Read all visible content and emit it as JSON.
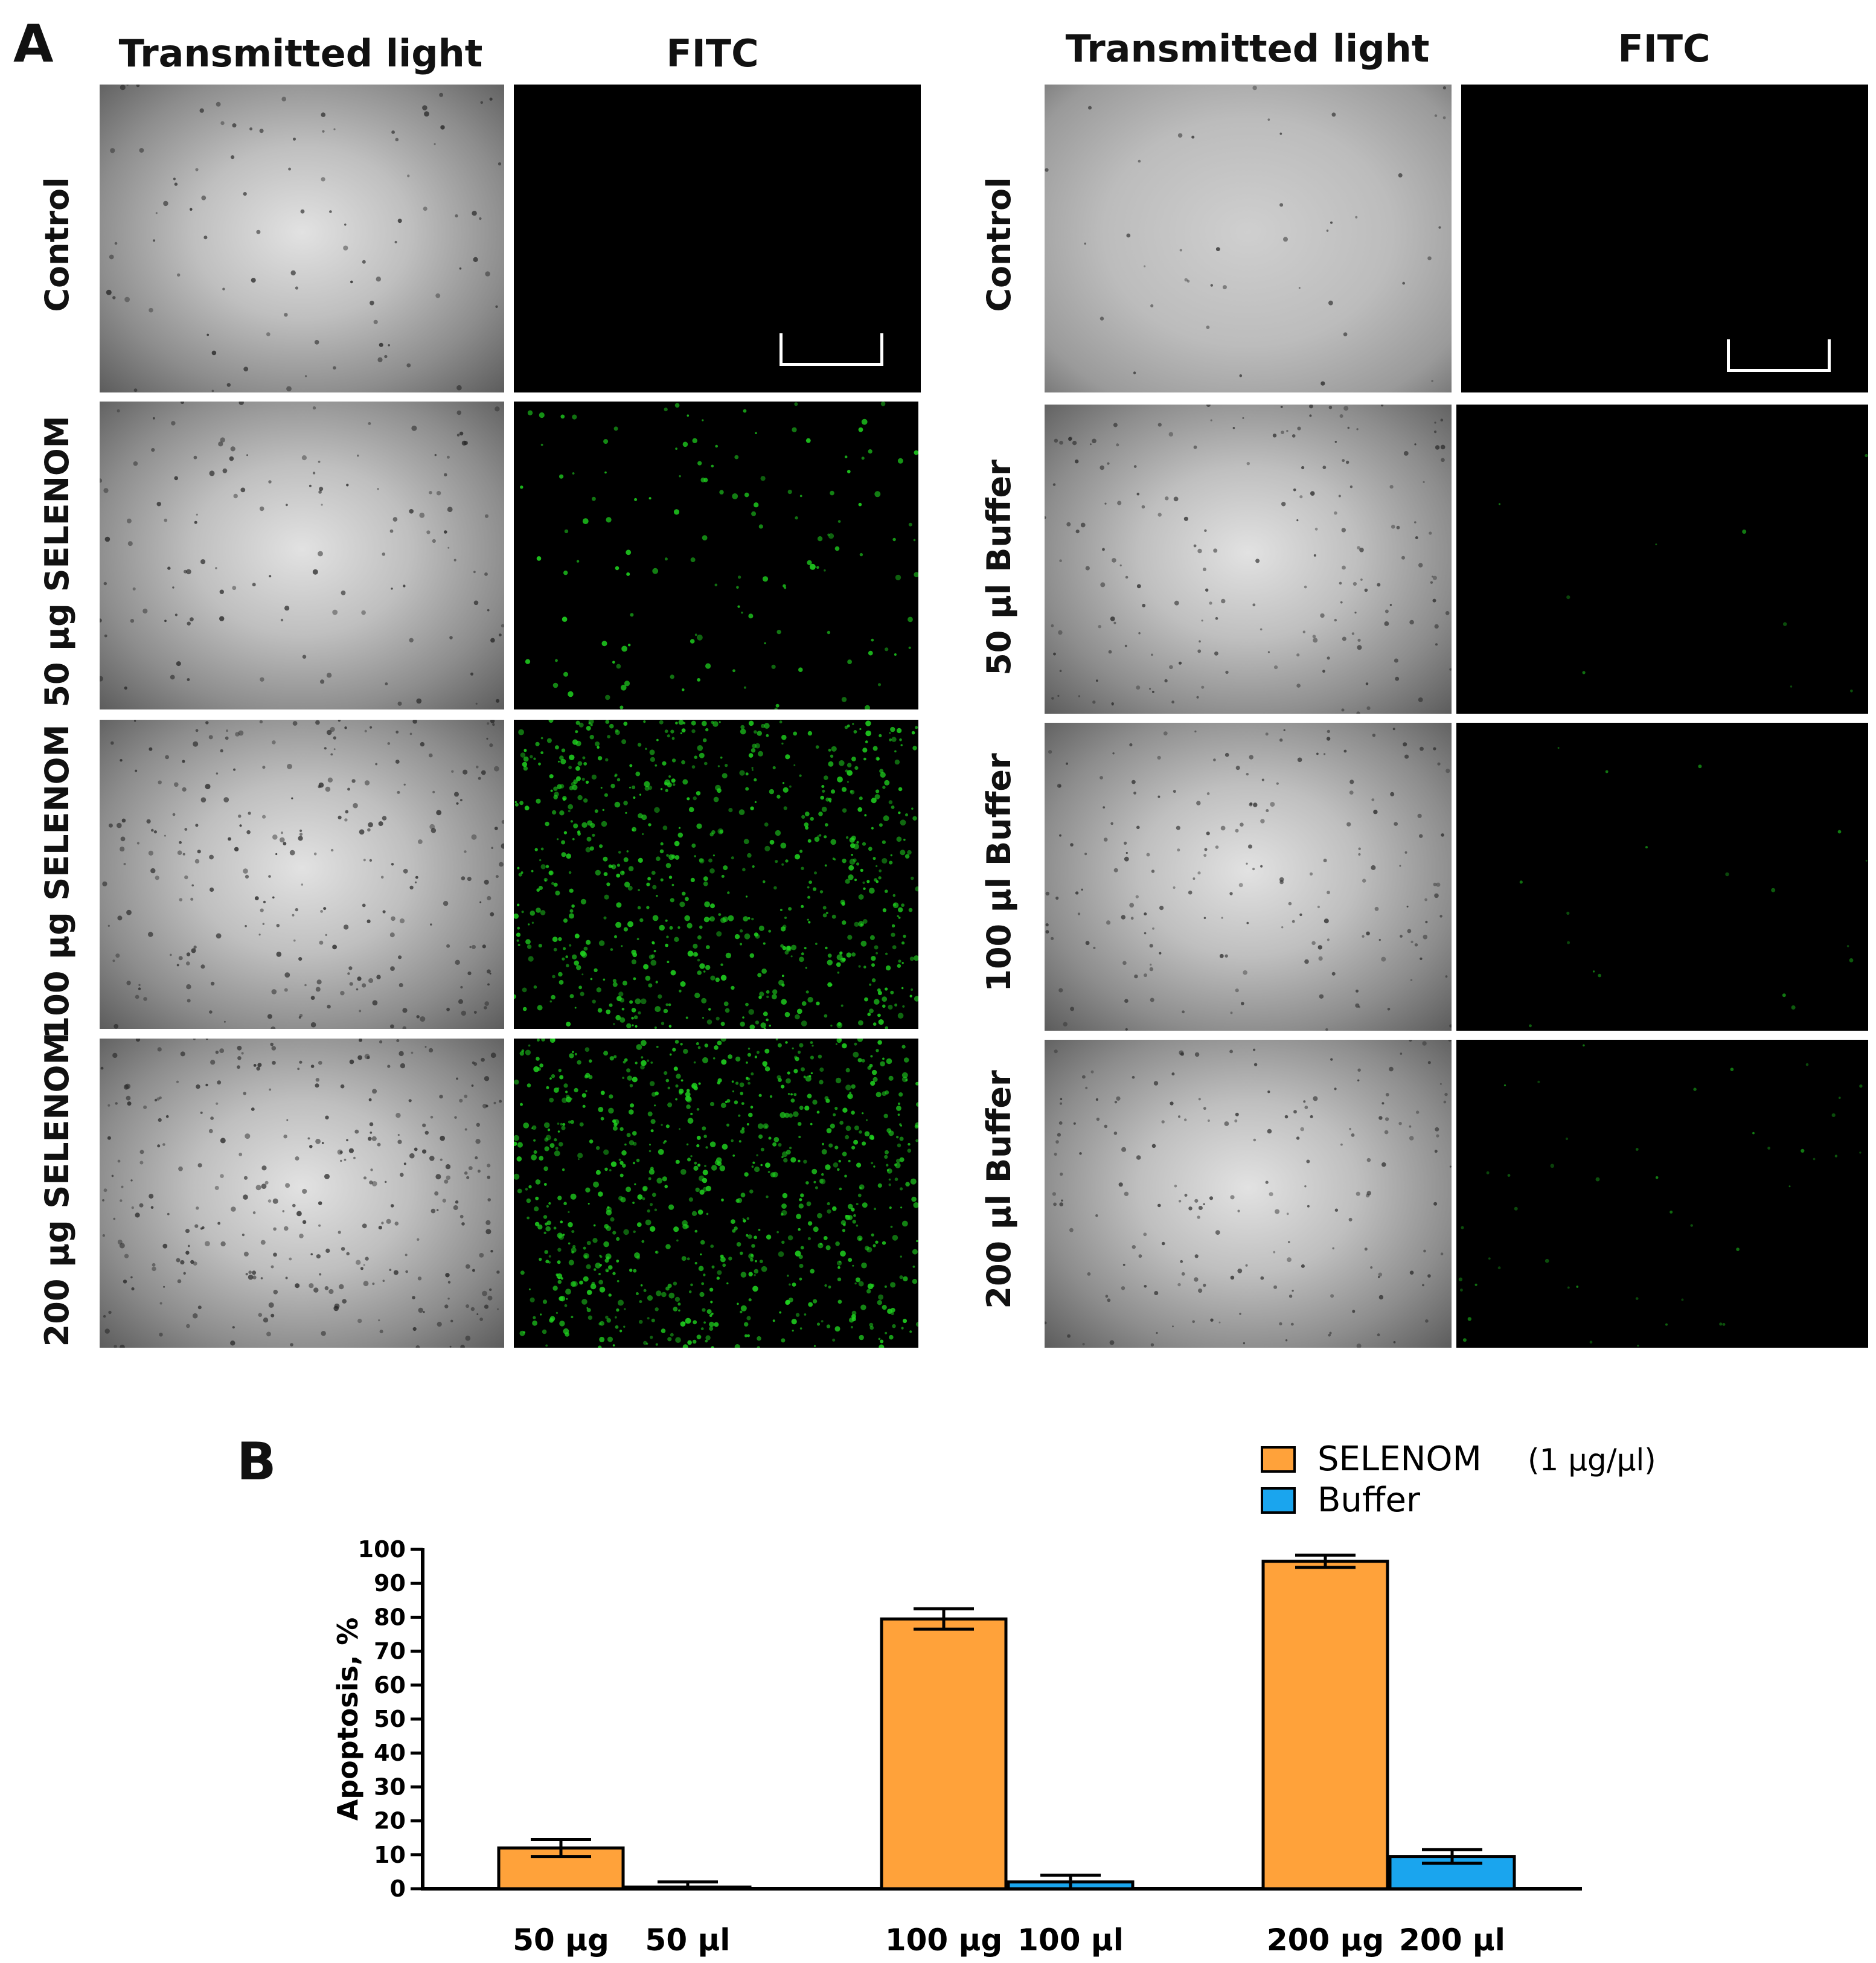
{
  "panel_a": {
    "letter": "A",
    "left_group": {
      "col_headers": [
        "Transmitted light",
        "FITC"
      ],
      "rows": [
        {
          "label": "Control",
          "fluorescence": 0,
          "scale_bar": true
        },
        {
          "label": "50 µg SELENOM",
          "fluorescence": 0.15,
          "scale_bar": false
        },
        {
          "label": "100 µg SELENOM",
          "fluorescence": 0.85,
          "scale_bar": false
        },
        {
          "label": "200 µg SELENOM",
          "fluorescence": 0.95,
          "scale_bar": false
        }
      ]
    },
    "right_group": {
      "col_headers": [
        "Transmitted light",
        "FITC"
      ],
      "rows": [
        {
          "label": "Control",
          "fluorescence": 0,
          "scale_bar": true
        },
        {
          "label": "50 µl Buffer",
          "fluorescence": 0.01,
          "scale_bar": false
        },
        {
          "label": "100 µl Buffer",
          "fluorescence": 0.02,
          "scale_bar": false
        },
        {
          "label": "200 µl Buffer",
          "fluorescence": 0.05,
          "scale_bar": false
        }
      ]
    }
  },
  "panel_b": {
    "letter": "B"
  },
  "chart_data": {
    "type": "bar",
    "ylabel": "Apoptosis, %",
    "ylim": [
      0,
      100
    ],
    "yticks": [
      0,
      10,
      20,
      30,
      40,
      50,
      60,
      70,
      80,
      90,
      100
    ],
    "legend_position": "top-right",
    "legend": [
      {
        "name": "SELENOM",
        "note": "(1 µg/µl)",
        "color": "#FFA23A"
      },
      {
        "name": "Buffer",
        "note": "",
        "color": "#1AA5EE"
      }
    ],
    "bars": [
      {
        "label": "50 µg",
        "series": "SELENOM",
        "value": 12,
        "error": 2.5
      },
      {
        "label": "50 µl",
        "series": "Buffer",
        "value": 0.5,
        "error": 1.5
      },
      {
        "label": "100 µg",
        "series": "SELENOM",
        "value": 79.5,
        "error": 3
      },
      {
        "label": "100 µl",
        "series": "Buffer",
        "value": 2,
        "error": 2
      },
      {
        "label": "200 µg",
        "series": "SELENOM",
        "value": 96.5,
        "error": 1.8
      },
      {
        "label": "200 µl",
        "series": "Buffer",
        "value": 9.5,
        "error": 2
      }
    ]
  }
}
